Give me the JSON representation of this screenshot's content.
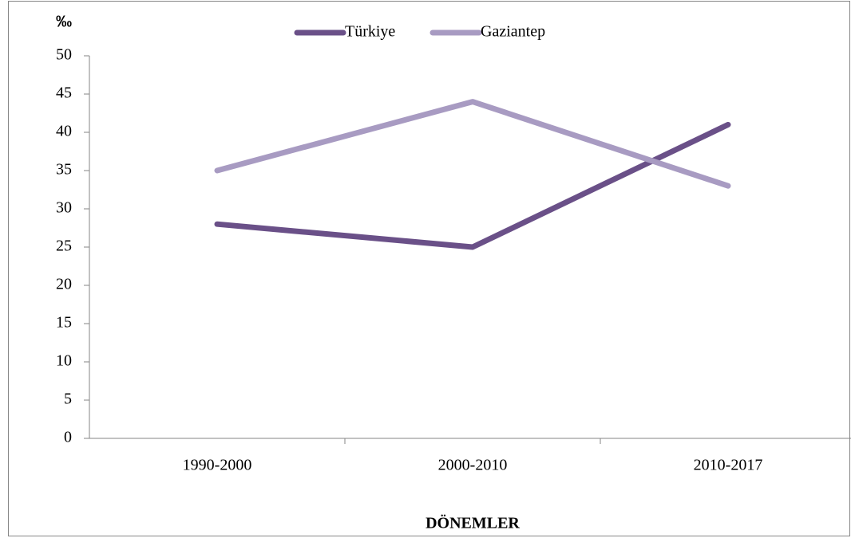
{
  "chart_data": {
    "type": "line",
    "y_label": "‰",
    "x_label": "DÖNEMLER",
    "categories": [
      "1990-2000",
      "2000-2010",
      "2010-2017"
    ],
    "series": [
      {
        "name": "Türkiye",
        "color": "#6a5088",
        "values": [
          28,
          25,
          41
        ]
      },
      {
        "name": "Gaziantep",
        "color": "#a89bc2",
        "values": [
          35,
          44,
          33
        ]
      }
    ],
    "ylim": [
      0,
      50
    ],
    "yticks": [
      0,
      5,
      10,
      15,
      20,
      25,
      30,
      35,
      40,
      45,
      50
    ],
    "grid": false,
    "legend": "top"
  }
}
